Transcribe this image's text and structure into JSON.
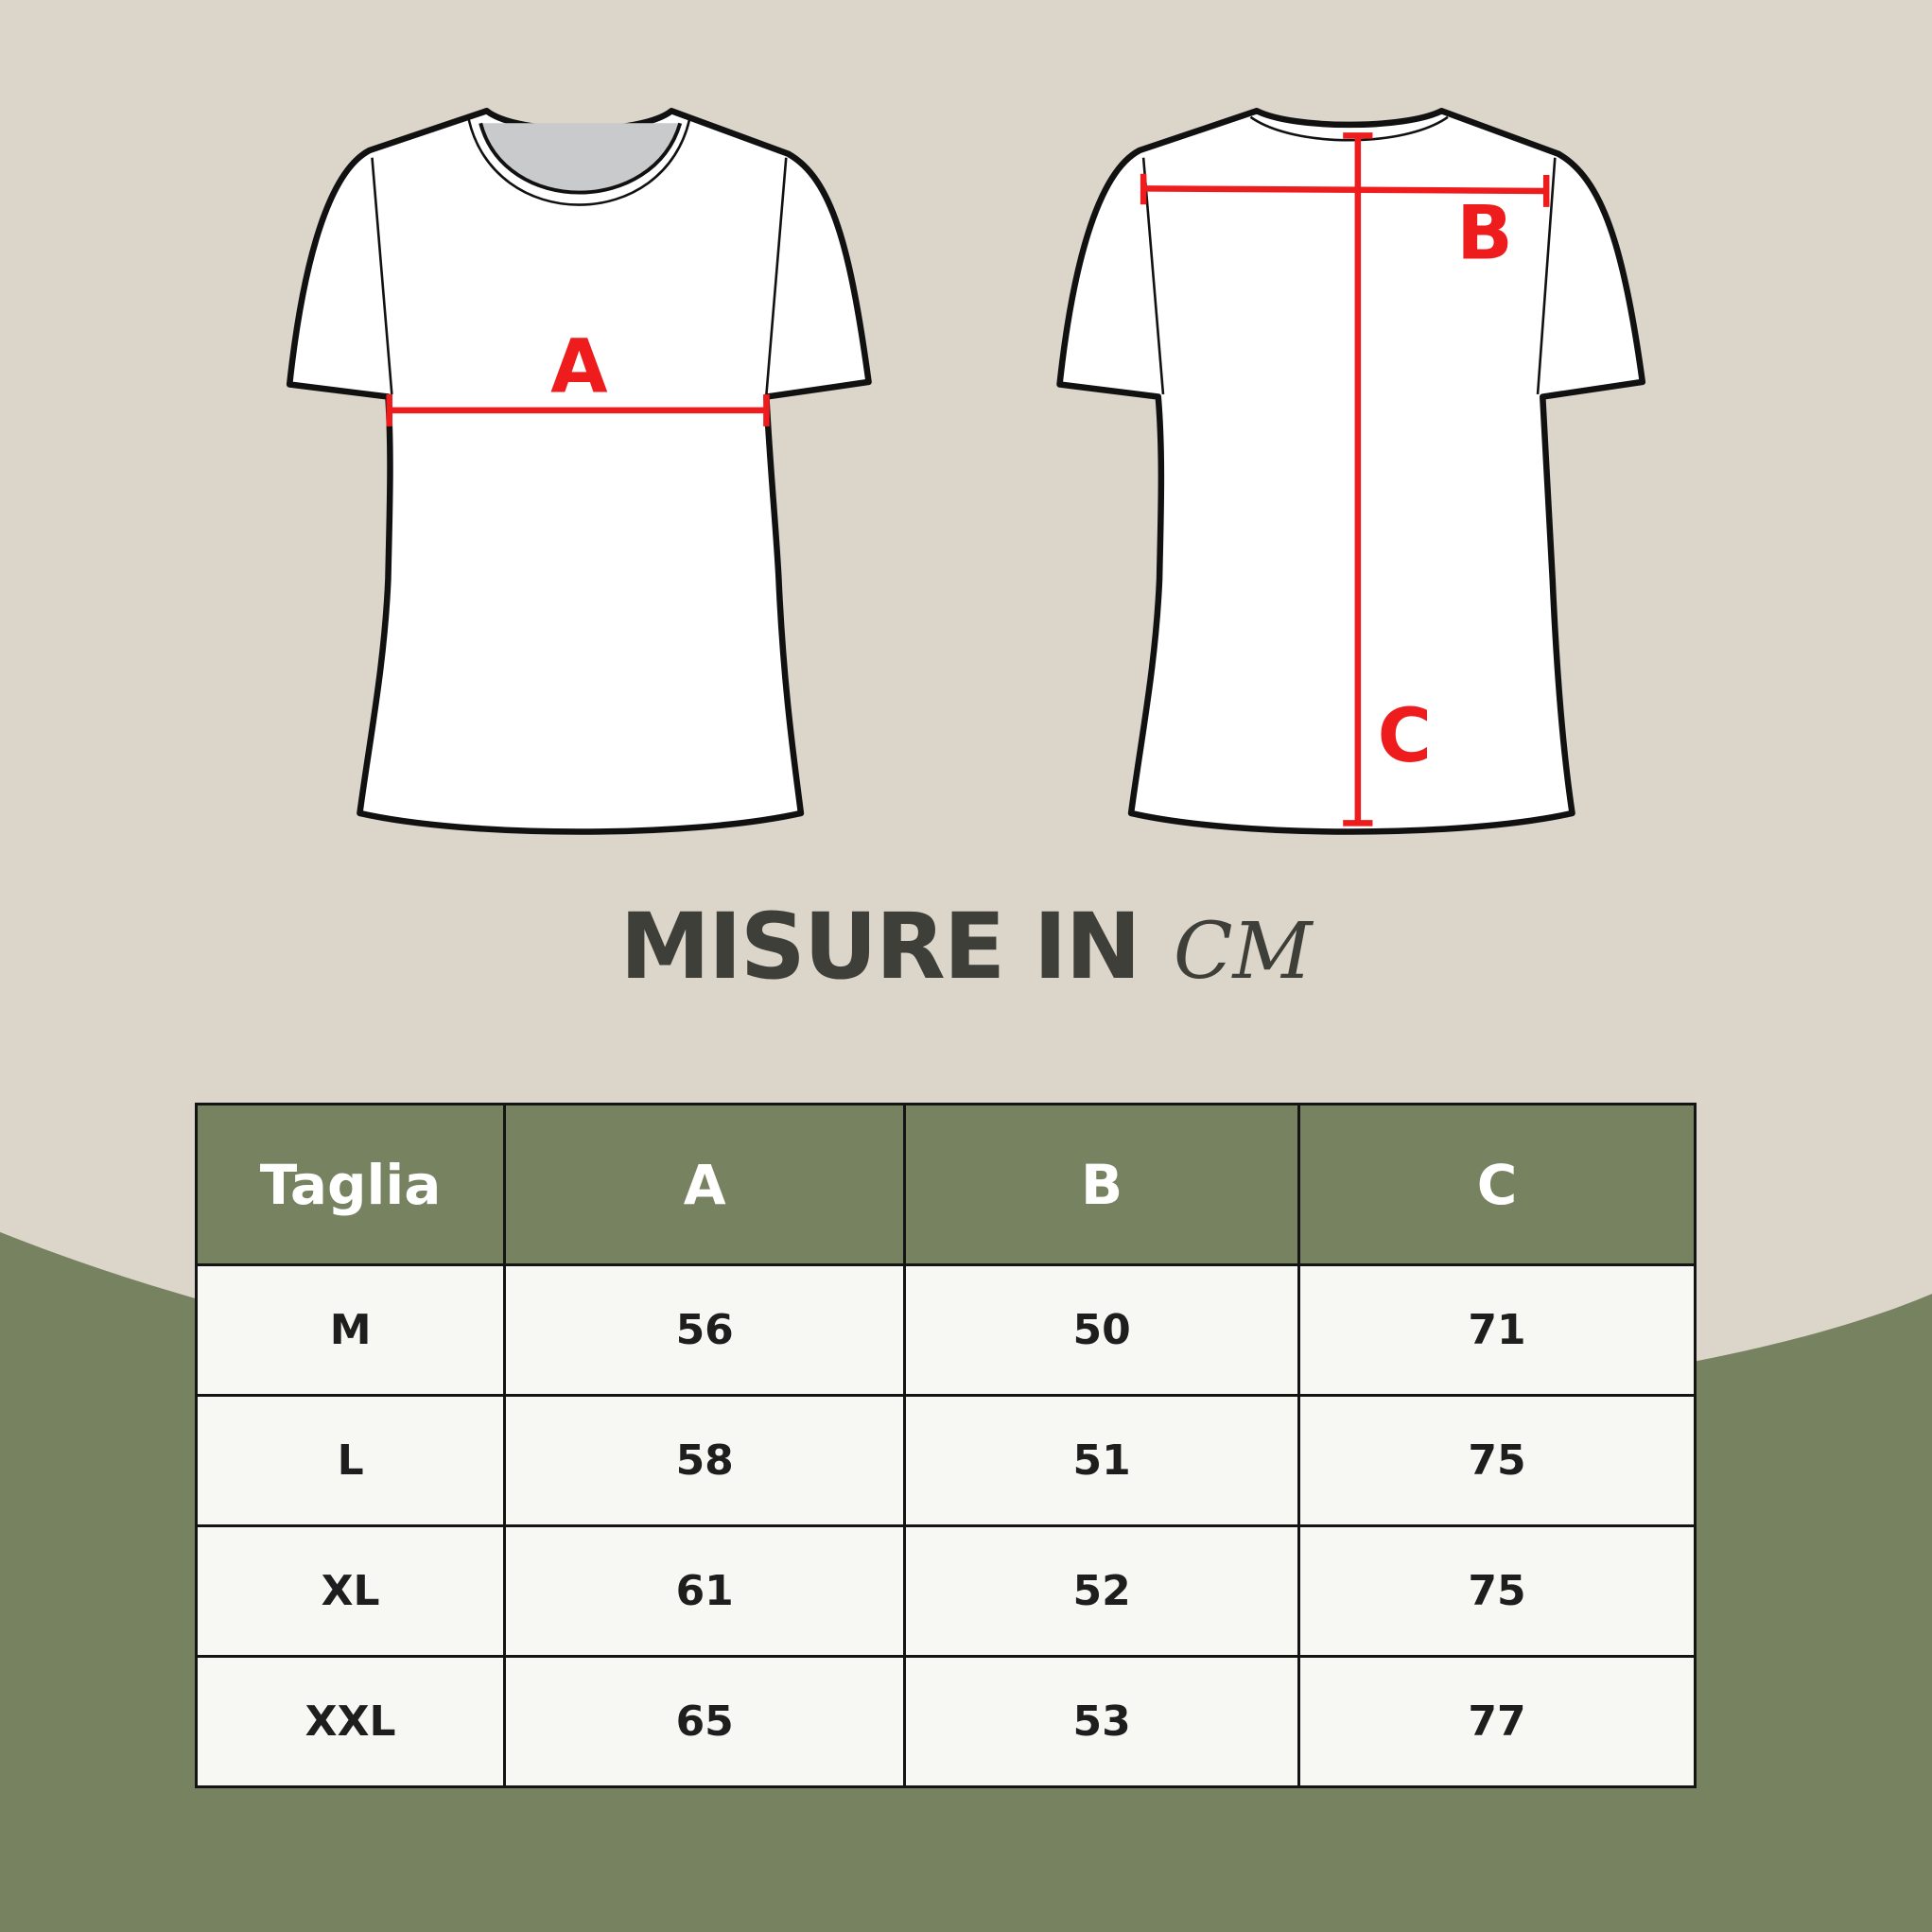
{
  "diagram": {
    "front_label": "A",
    "back_labels": {
      "b": "B",
      "c": "C"
    },
    "colors": {
      "measure_line": "#ee1c1c",
      "shirt": "#ffffff",
      "outline": "#111111",
      "background": "#dbd5ca",
      "accent_green": "#778260"
    }
  },
  "title": {
    "main": "MISURE IN",
    "unit": "CM"
  },
  "table": {
    "headers": [
      "Taglia",
      "A",
      "B",
      "C"
    ],
    "rows": [
      [
        "M",
        "56",
        "50",
        "71"
      ],
      [
        "L",
        "58",
        "51",
        "75"
      ],
      [
        "XL",
        "61",
        "52",
        "75"
      ],
      [
        "XXL",
        "65",
        "53",
        "77"
      ]
    ]
  }
}
